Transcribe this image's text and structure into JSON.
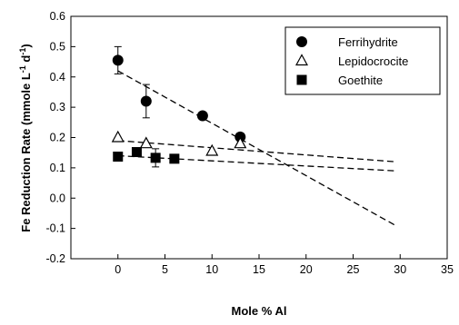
{
  "chart_data": {
    "type": "scatter",
    "title": "",
    "xlabel": "Mole % Al",
    "ylabel": "Fe Reduction Rate (mmole L",
    "ylabel_sup1": "-1",
    "ylabel_mid": " d",
    "ylabel_sup2": "-1",
    "ylabel_end": ")",
    "xlim": [
      -5,
      35
    ],
    "ylim": [
      -0.2,
      0.6
    ],
    "xticks": [
      0,
      5,
      10,
      15,
      20,
      25,
      30,
      35
    ],
    "yticks": [
      -0.2,
      -0.1,
      0.0,
      0.1,
      0.2,
      0.3,
      0.4,
      0.5,
      0.6
    ],
    "ytick_labels": [
      "-0.2",
      "-0.1",
      "0.0",
      "0.1",
      "0.2",
      "0.3",
      "0.4",
      "0.5",
      "0.6"
    ],
    "grid": false,
    "legend_position": "top-right",
    "series": [
      {
        "name": "Ferrihydrite",
        "marker": "circle-filled",
        "x": [
          0,
          3,
          9,
          13
        ],
        "y": [
          0.455,
          0.32,
          0.272,
          0.202
        ],
        "yerr": [
          0.045,
          0.055,
          0.008,
          0.012
        ],
        "trend": {
          "x": [
            0,
            29.5
          ],
          "y": [
            0.42,
            -0.09
          ]
        }
      },
      {
        "name": "Lepidocrocite",
        "marker": "triangle-open",
        "x": [
          0,
          3,
          10,
          13
        ],
        "y": [
          0.2,
          0.18,
          0.155,
          0.18
        ],
        "yerr": [
          0.005,
          0.005,
          0.005,
          0.005
        ],
        "trend": {
          "x": [
            0,
            29.5
          ],
          "y": [
            0.19,
            0.12
          ]
        }
      },
      {
        "name": "Goethite",
        "marker": "square-filled",
        "x": [
          0,
          2,
          4,
          6
        ],
        "y": [
          0.137,
          0.152,
          0.133,
          0.13
        ],
        "yerr": [
          0.005,
          0.005,
          0.03,
          0.005
        ],
        "trend": {
          "x": [
            0,
            29.5
          ],
          "y": [
            0.14,
            0.09
          ]
        }
      }
    ]
  }
}
